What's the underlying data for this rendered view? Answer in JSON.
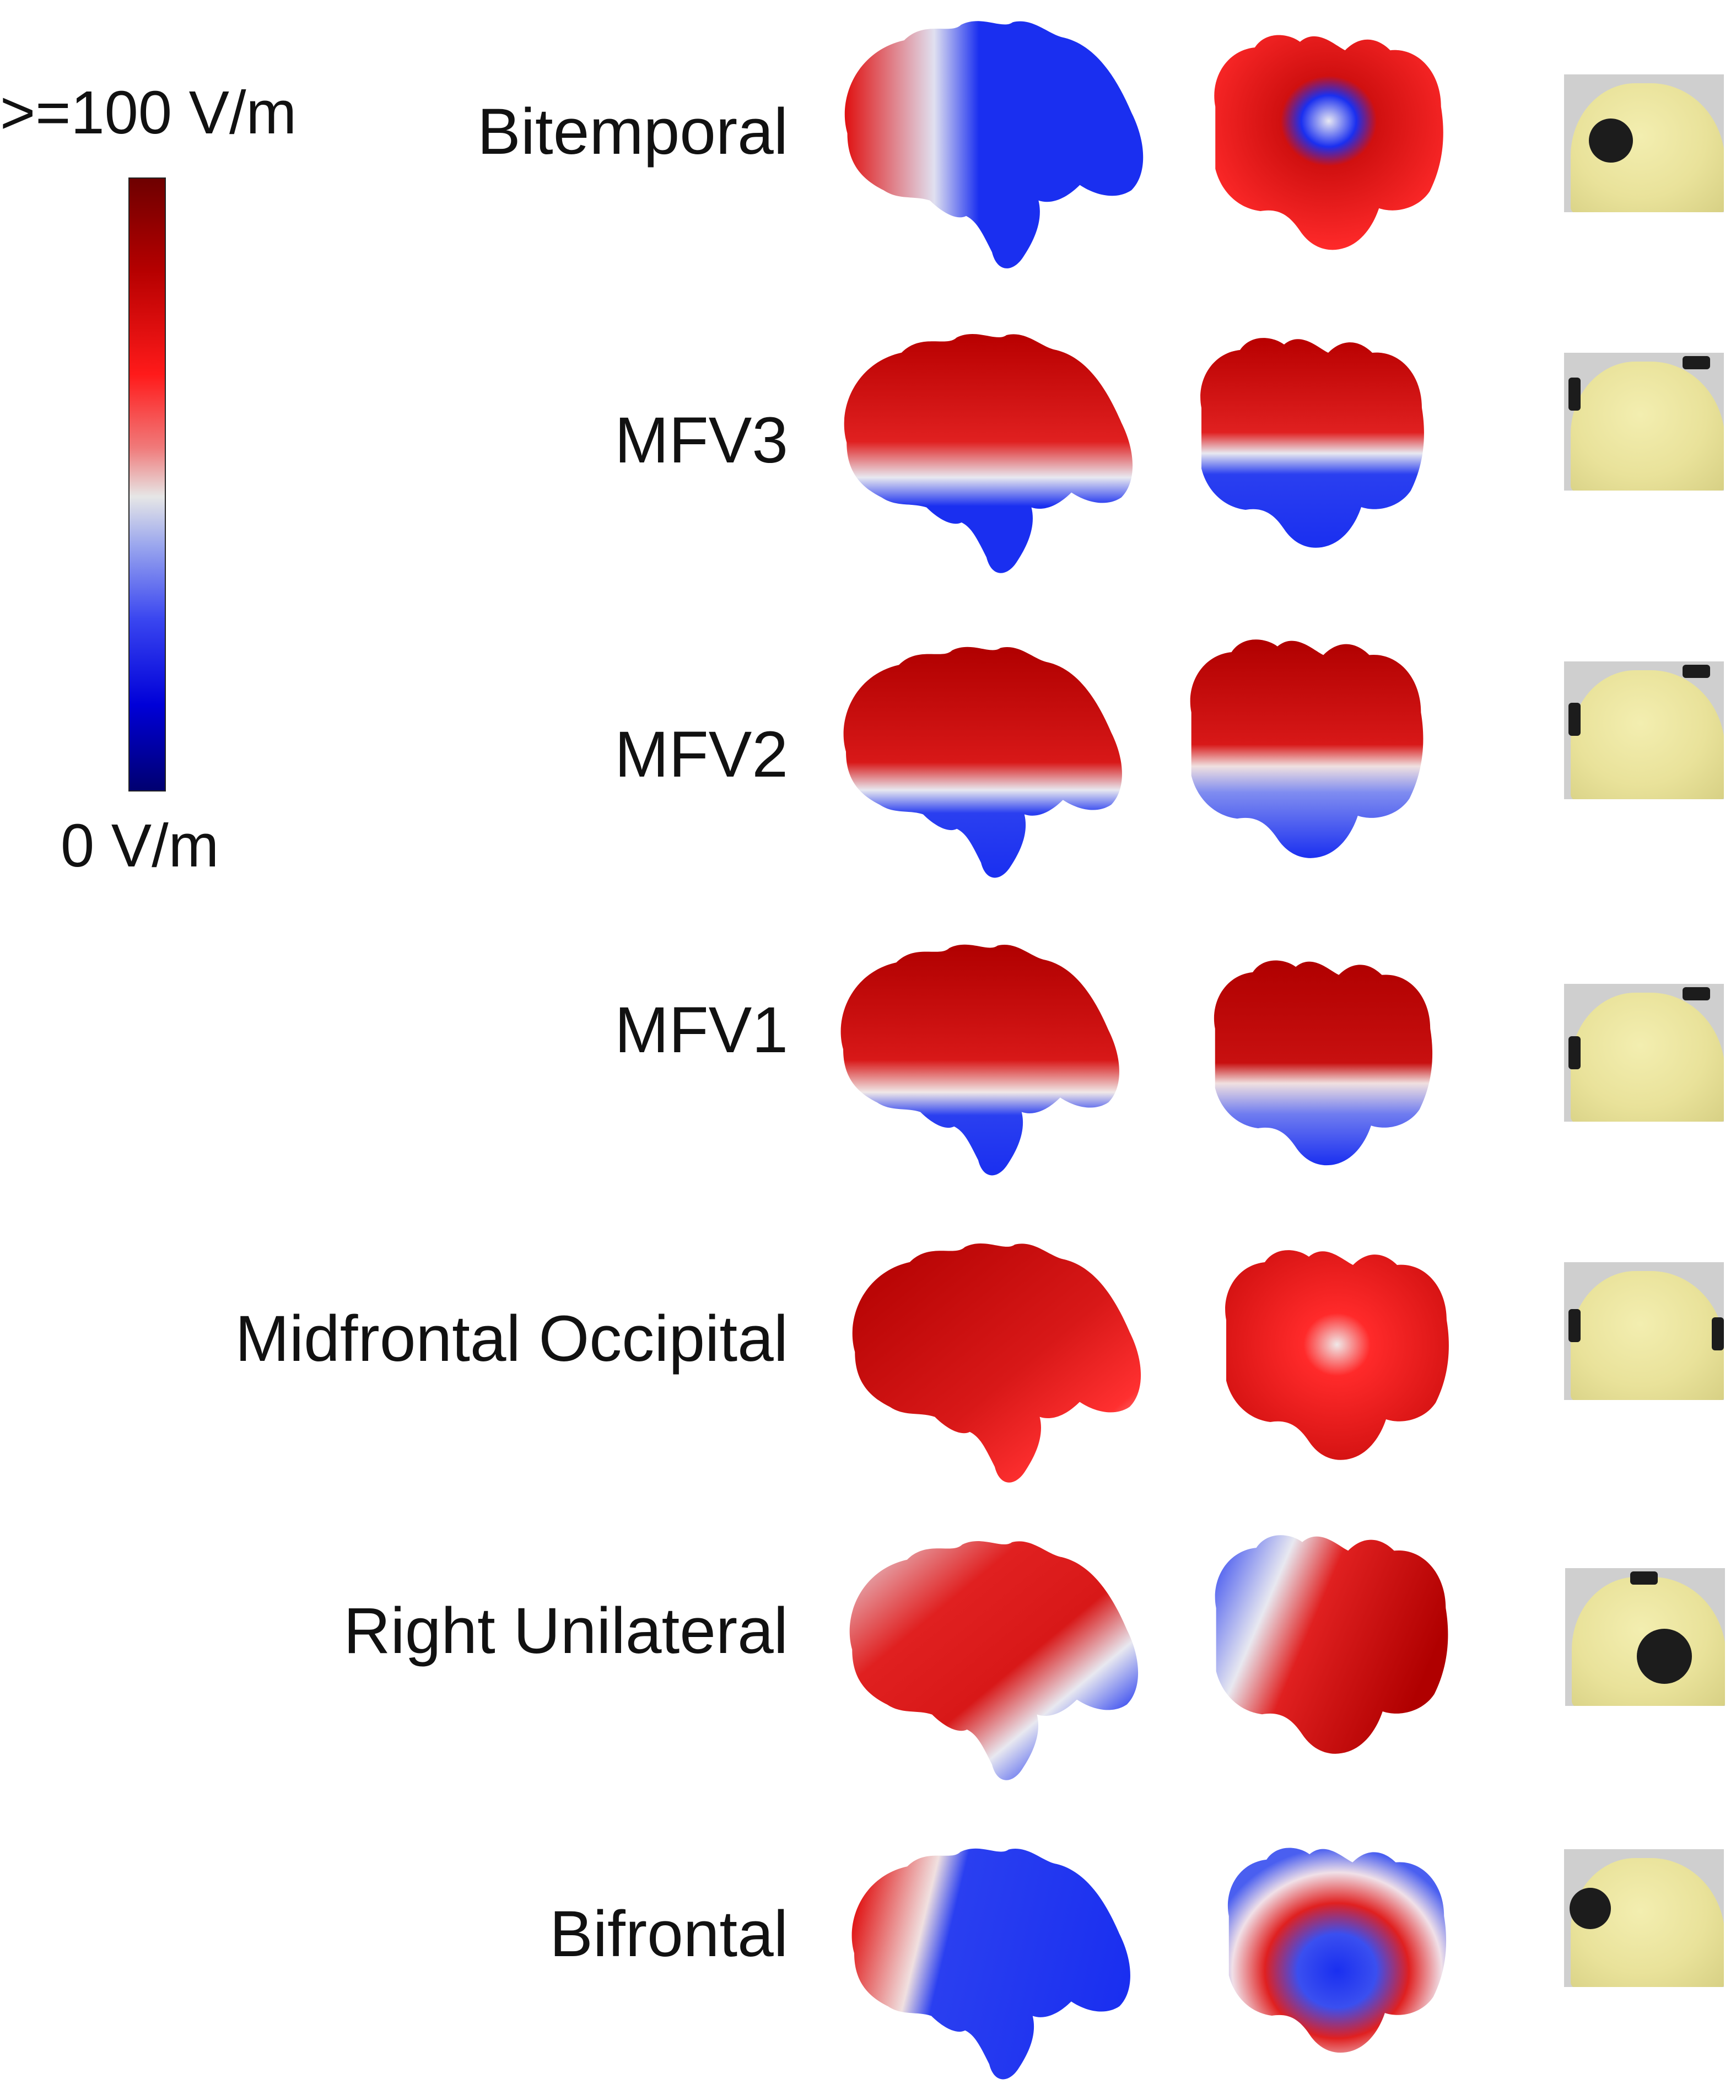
{
  "legend": {
    "max_label": ">=100 V/m",
    "min_label": "0 V/m",
    "colormap": [
      "#6e0000",
      "#ff1a1a",
      "#e6e6e6",
      "#3a46f0",
      "#000070"
    ]
  },
  "rows": [
    {
      "label": "Bitemporal",
      "electrodes": "bitemporal"
    },
    {
      "label": "MFV3",
      "electrodes": "midfrontal-vertex"
    },
    {
      "label": "MFV2",
      "electrodes": "midfrontal-vertex"
    },
    {
      "label": "MFV1",
      "electrodes": "midfrontal-vertex"
    },
    {
      "label": "Midfrontal Occipital",
      "electrodes": "midfrontal-occipital"
    },
    {
      "label": "Right Unilateral",
      "electrodes": "right-unilateral"
    },
    {
      "label": "Bifrontal",
      "electrodes": "bifrontal"
    }
  ],
  "colors": {
    "high": "#c00000",
    "mid": "#e8e8e8",
    "low": "#1a2ff0",
    "head": "#ece5a0"
  }
}
